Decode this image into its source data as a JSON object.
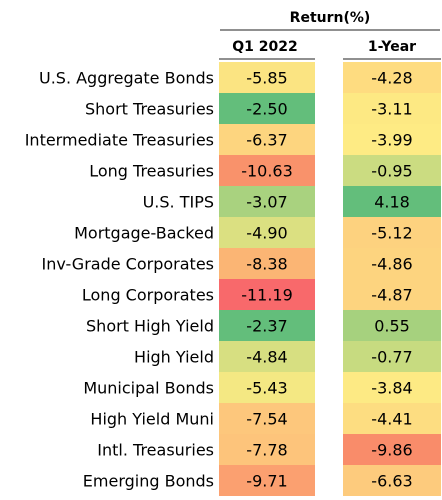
{
  "chart_data": {
    "type": "heatmap",
    "title": "Return(%)",
    "columns": [
      "Q1 2022",
      "1-Year"
    ],
    "rows": [
      "U.S. Aggregate Bonds",
      "Short Treasuries",
      "Intermediate Treasuries",
      "Long Treasuries",
      "U.S. TIPS",
      "Mortgage-Backed",
      "Inv-Grade Corporates",
      "Long Corporates",
      "Short High Yield",
      "High Yield",
      "Municipal Bonds",
      "High Yield Muni",
      "Intl. Treasuries",
      "Emerging Bonds"
    ],
    "values": [
      [
        "-5.85",
        "-4.28"
      ],
      [
        "-2.50",
        "-3.11"
      ],
      [
        "-6.37",
        "-3.99"
      ],
      [
        "-10.63",
        "-0.95"
      ],
      [
        "-3.07",
        "4.18"
      ],
      [
        "-4.90",
        "-5.12"
      ],
      [
        "-8.38",
        "-4.86"
      ],
      [
        "-11.19",
        "-4.87"
      ],
      [
        "-2.37",
        "0.55"
      ],
      [
        "-4.84",
        "-0.77"
      ],
      [
        "-5.43",
        "-3.84"
      ],
      [
        "-7.54",
        "-4.41"
      ],
      [
        "-7.78",
        "-9.86"
      ],
      [
        "-9.71",
        "-6.63"
      ]
    ],
    "colors": [
      [
        "#fbe482",
        "#fedc80"
      ],
      [
        "#63be7b",
        "#fde983"
      ],
      [
        "#fdd57f",
        "#feeb84"
      ],
      [
        "#f9926b",
        "#cbdc81"
      ],
      [
        "#a9d27f",
        "#63be7b"
      ],
      [
        "#dbe081",
        "#fdd27f"
      ],
      [
        "#fbb574",
        "#fdd47f"
      ],
      [
        "#f8696b",
        "#fdd47f"
      ],
      [
        "#63be7b",
        "#a6d17e"
      ],
      [
        "#d7df81",
        "#c7db80"
      ],
      [
        "#f4e883",
        "#fdea84"
      ],
      [
        "#fdc77c",
        "#fddd81"
      ],
      [
        "#fdc47b",
        "#f98c6a"
      ],
      [
        "#fba070",
        "#fdcb7d"
      ]
    ]
  }
}
